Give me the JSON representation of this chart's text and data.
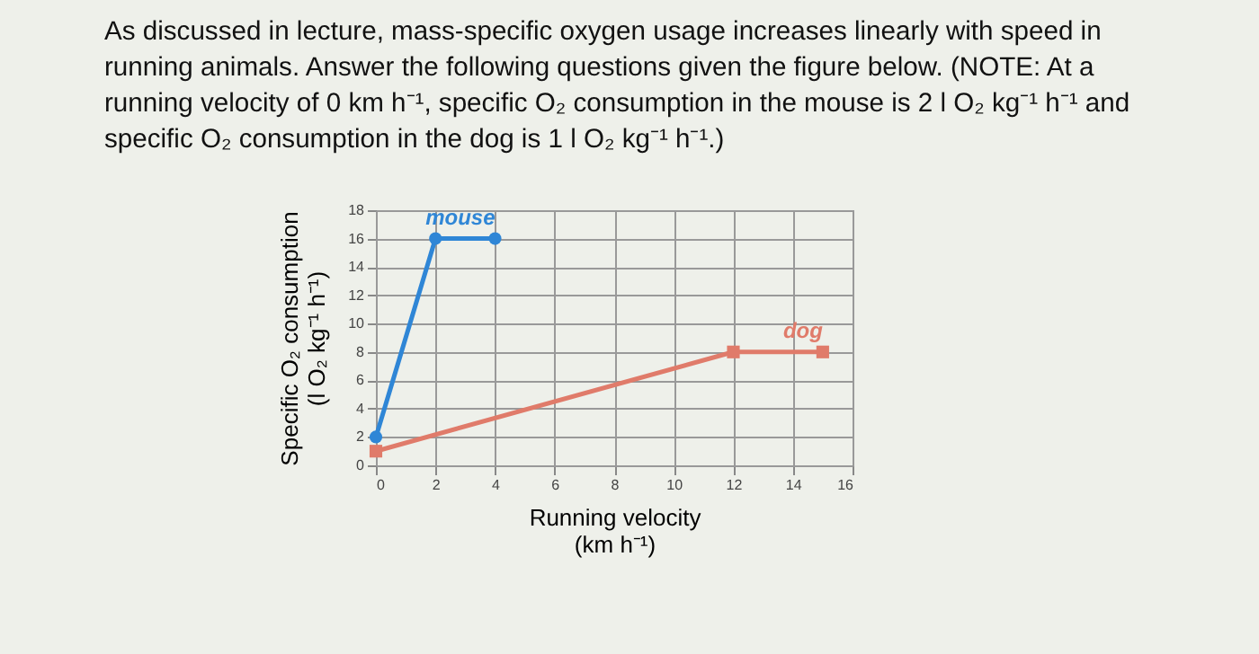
{
  "chart_data": {
    "type": "line",
    "title": "As discussed in lecture, mass-specific oxygen usage increases linearly with speed in running animals. Answer the following questions given the figure below. (NOTE: At a running velocity of 0 km h⁻¹, specific O₂ consumption in the mouse is 2 l O₂ kg⁻¹ h⁻¹ and specific O₂ consumption in the dog is 1 l O₂ kg⁻¹ h⁻¹.)",
    "xlabel": "Running velocity\n(km h⁻¹)",
    "ylabel": "Specific O₂ consumption\n(l O₂ kg⁻¹ h⁻¹)",
    "series": [
      {
        "name": "mouse",
        "color": "#2f86d6",
        "x": [
          0,
          2,
          4
        ],
        "values": [
          2,
          16,
          16
        ],
        "marker": "circle"
      },
      {
        "name": "dog",
        "color": "#e07b6a",
        "x": [
          0,
          12,
          15
        ],
        "values": [
          1,
          8,
          8
        ],
        "marker": "square"
      }
    ],
    "xlim": [
      0,
      16
    ],
    "xticks": [
      0,
      2,
      4,
      6,
      8,
      10,
      12,
      14,
      16
    ],
    "ylim": [
      0,
      18
    ],
    "yticks": [
      0,
      2,
      4,
      6,
      8,
      10,
      12,
      14,
      16,
      18
    ],
    "grid": true,
    "legend": false
  }
}
